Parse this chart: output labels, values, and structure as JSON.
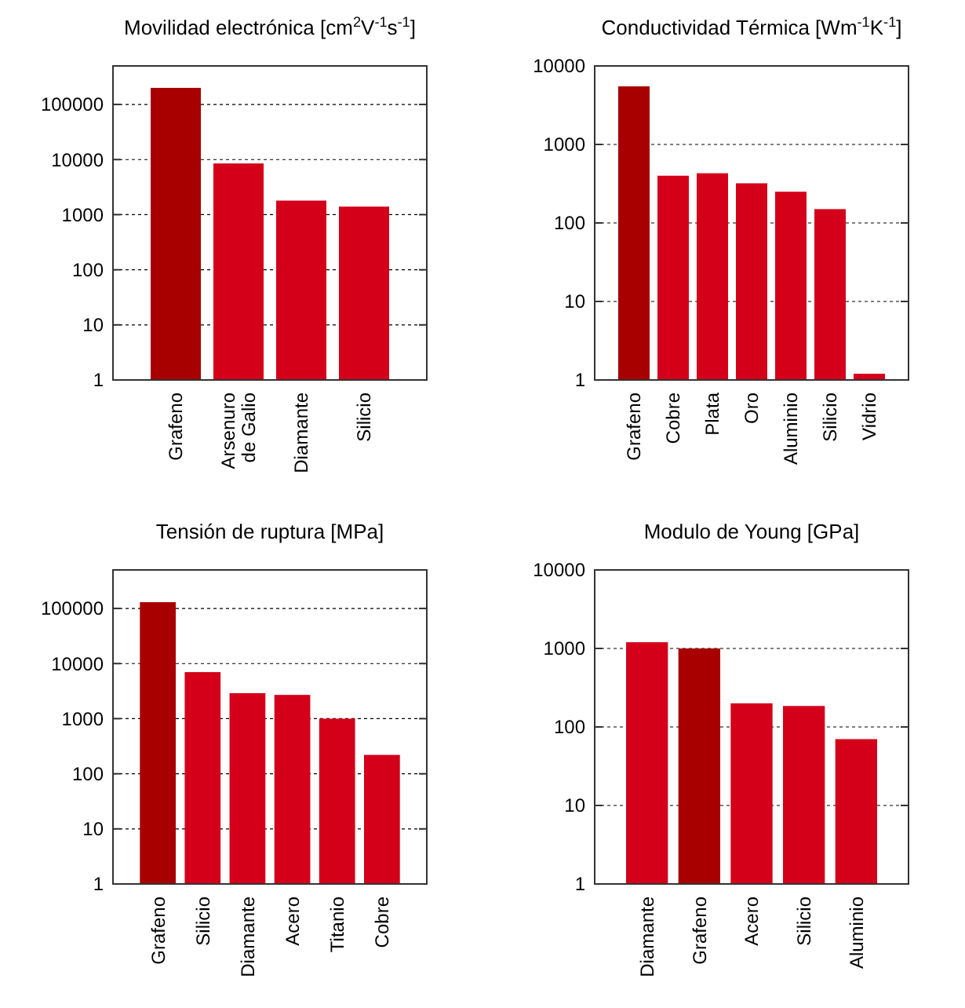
{
  "chart_data": [
    {
      "type": "bar",
      "title": "Movilidad electrónica [cm$^{2}$V$^{-1}$s$^{-1}$]",
      "categories": [
        "Grafeno",
        "Arsenuro de Galio",
        "Diamante",
        "Silicio"
      ],
      "values": [
        200000,
        8500,
        1800,
        1400
      ],
      "colors": [
        "#a80000",
        "#d4001a",
        "#d4001a",
        "#d4001a"
      ],
      "log": true,
      "ylim": [
        1,
        500000
      ],
      "yticks": [
        1,
        10,
        100,
        1000,
        10000,
        100000
      ],
      "grid": "y"
    },
    {
      "type": "bar",
      "title": "Conductividad Térmica [Wm$^{-1}$K$^{-1}$]",
      "categories": [
        "Grafeno",
        "Cobre",
        "Plata",
        "Oro",
        "Aluminio",
        "Silicio",
        "Vidrio"
      ],
      "values": [
        5500,
        400,
        430,
        320,
        250,
        150,
        1.2
      ],
      "colors": [
        "#a80000",
        "#d4001a",
        "#d4001a",
        "#d4001a",
        "#d4001a",
        "#d4001a",
        "#d4001a"
      ],
      "log": true,
      "ylim": [
        1,
        10000
      ],
      "yticks": [
        1,
        10,
        100,
        1000,
        10000
      ],
      "grid": "y"
    },
    {
      "type": "bar",
      "title": "Tensión de ruptura [MPa]",
      "categories": [
        "Grafeno",
        "Silicio",
        "Diamante",
        "Acero",
        "Titanio",
        "Cobre"
      ],
      "values": [
        130000,
        7000,
        2900,
        2700,
        1000,
        220
      ],
      "colors": [
        "#a80000",
        "#d4001a",
        "#d4001a",
        "#d4001a",
        "#d4001a",
        "#d4001a"
      ],
      "log": true,
      "ylim": [
        1,
        500000
      ],
      "yticks": [
        1,
        10,
        100,
        1000,
        10000,
        100000
      ],
      "grid": "y"
    },
    {
      "type": "bar",
      "title": "Modulo de Young [GPa]",
      "categories": [
        "Diamante",
        "Grafeno",
        "Acero",
        "Silicio",
        "Aluminio"
      ],
      "values": [
        1200,
        1000,
        200,
        185,
        70
      ],
      "colors": [
        "#d4001a",
        "#a80000",
        "#d4001a",
        "#d4001a",
        "#d4001a"
      ],
      "log": true,
      "ylim": [
        1,
        10000
      ],
      "yticks": [
        1,
        10,
        100,
        1000,
        10000
      ],
      "grid": "y"
    }
  ]
}
